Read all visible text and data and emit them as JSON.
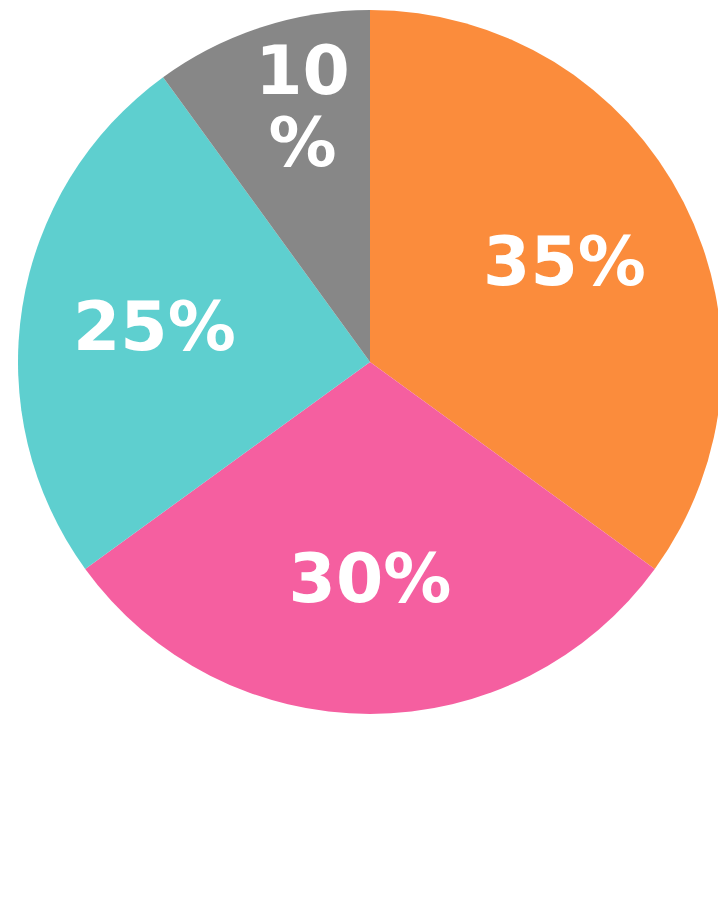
{
  "chart_data": {
    "type": "pie",
    "categories": [
      null,
      null,
      null,
      null
    ],
    "values": [
      35,
      30,
      25,
      10
    ],
    "colors": [
      "#fb8c3c",
      "#f55fa0",
      "#5ecfcf",
      "#878787"
    ],
    "value_labels": [
      "35%",
      "30%",
      "25%",
      "10\n%"
    ],
    "legend": false
  }
}
